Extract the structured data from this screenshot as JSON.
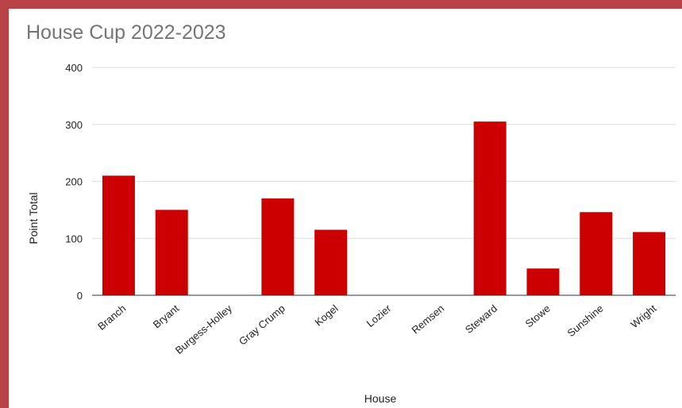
{
  "chart_data": {
    "type": "bar",
    "title": "House Cup 2022-2023",
    "xlabel": "House",
    "ylabel": "Point Total",
    "ylim": [
      0,
      400
    ],
    "yticks": [
      0,
      100,
      200,
      300,
      400
    ],
    "grid": true,
    "bar_color": "#cc0000",
    "categories": [
      "Branch",
      "Bryant",
      "Burgess-Holley",
      "Gray Crump",
      "Kogel",
      "Lozier",
      "Remsen",
      "Steward",
      "Stowe",
      "Sunshine",
      "Wright"
    ],
    "values": [
      210,
      150,
      0,
      170,
      115,
      0,
      0,
      305,
      47,
      146,
      111
    ]
  }
}
